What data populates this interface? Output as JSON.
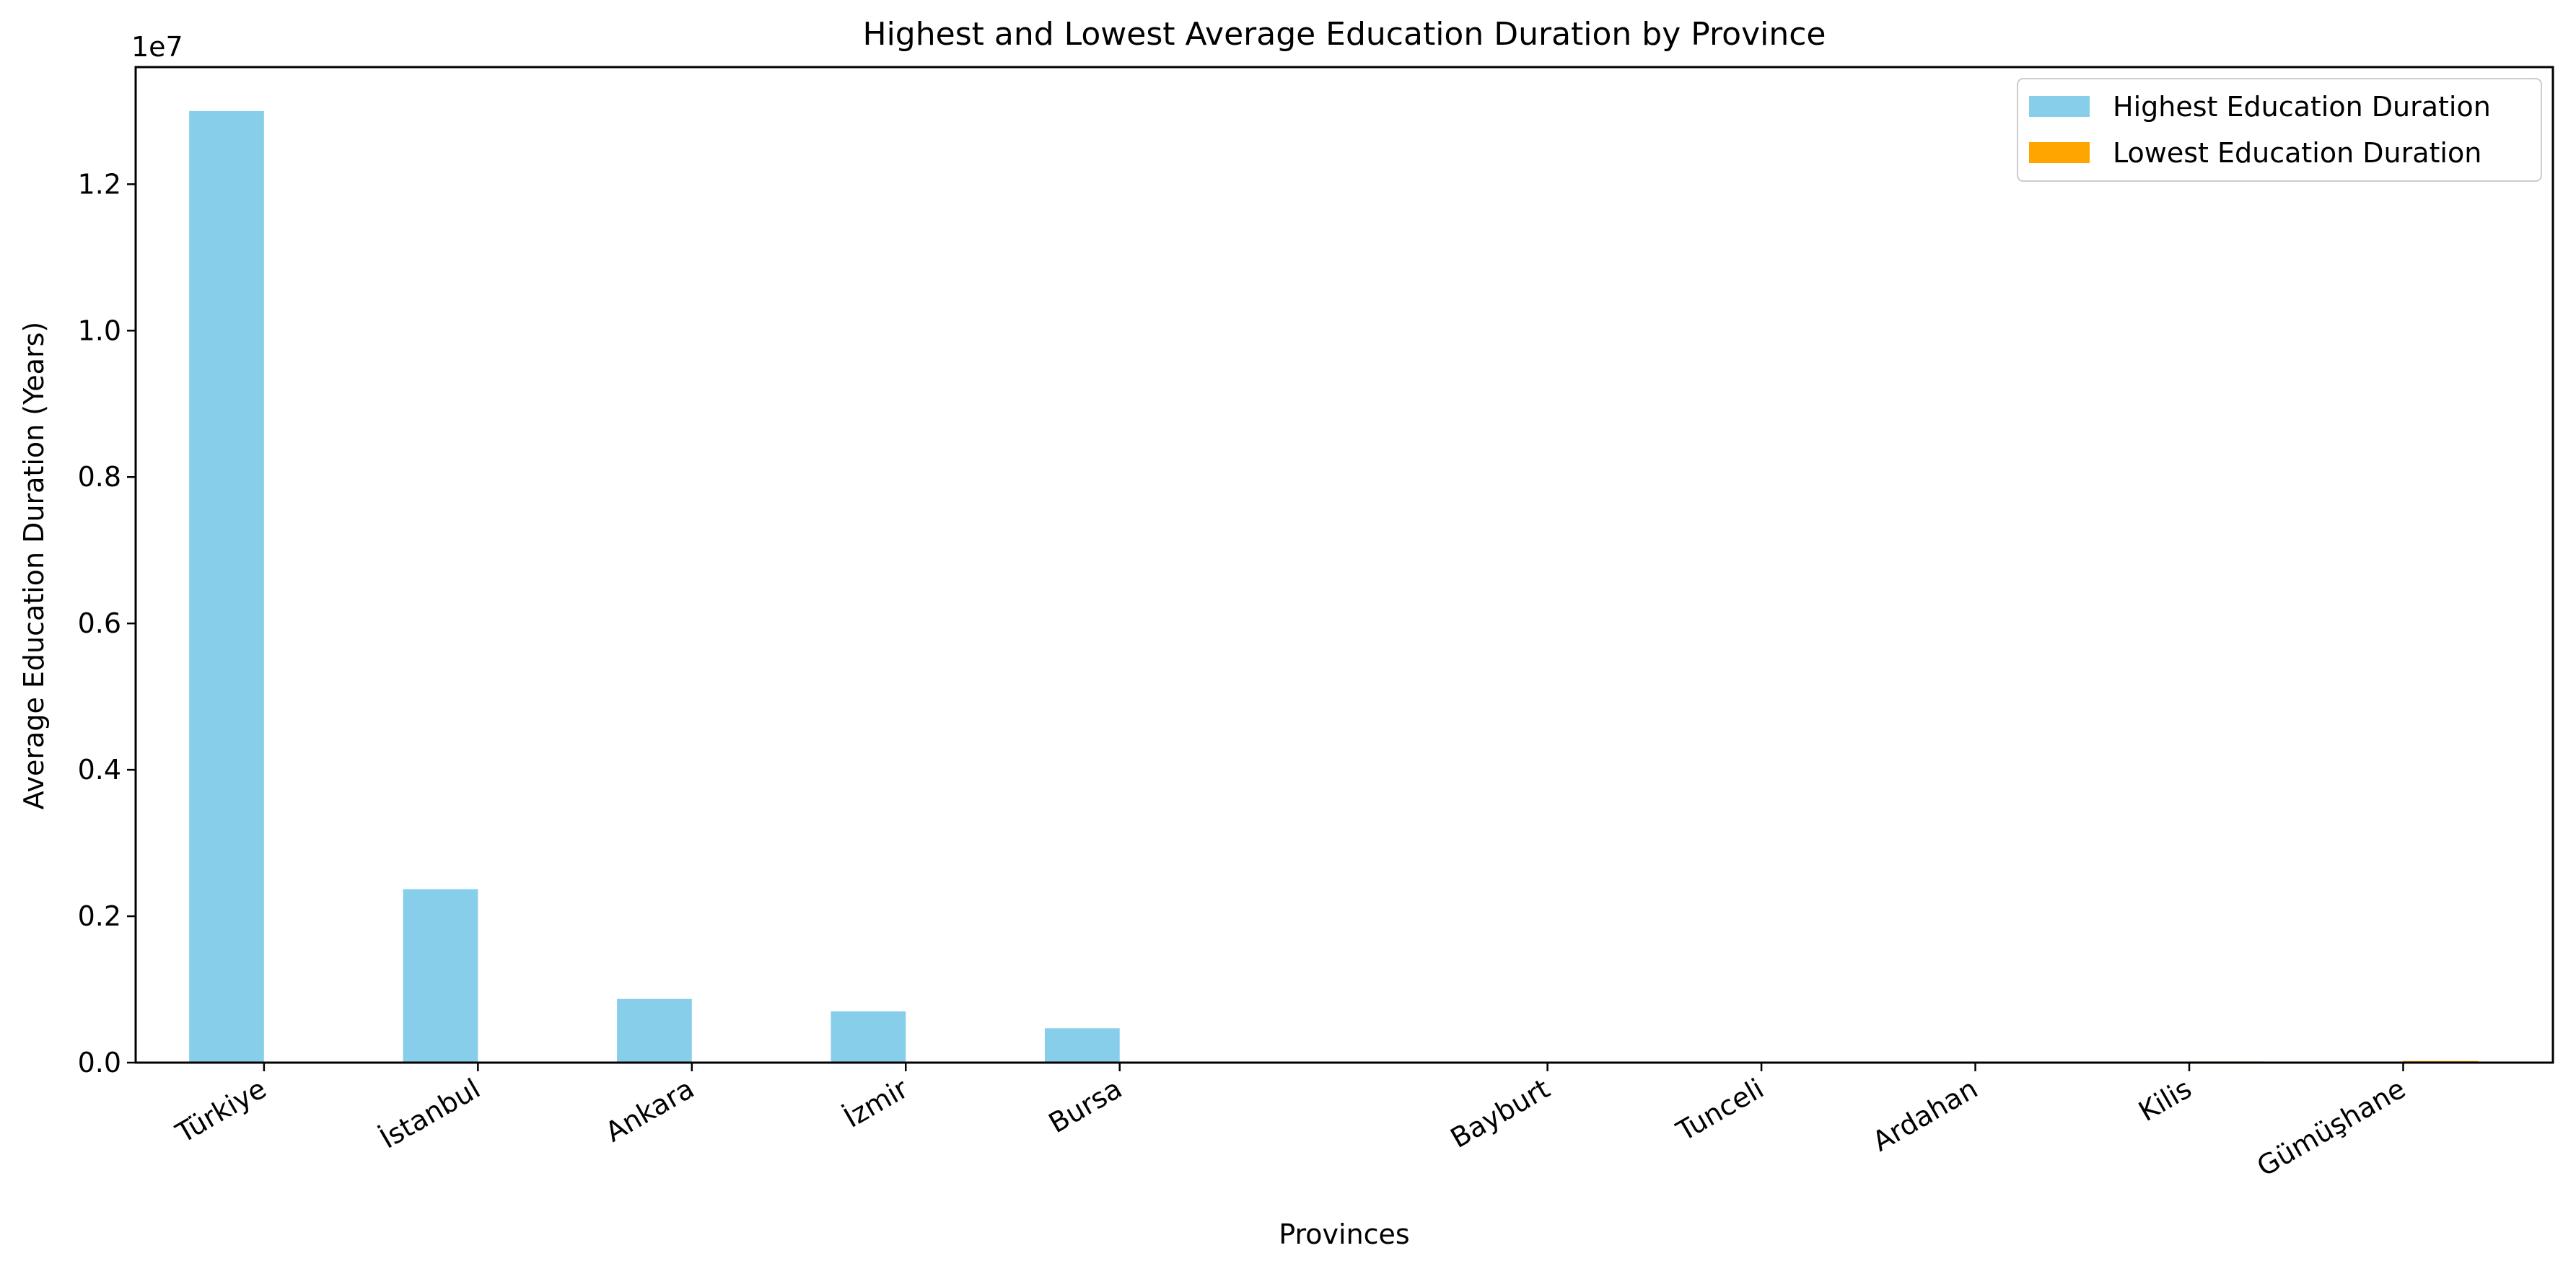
{
  "chart_data": {
    "type": "bar",
    "title": "Highest and Lowest Average Education Duration by Province",
    "xlabel": "Provinces",
    "ylabel": "Average Education Duration (Years)",
    "y_multiplier_label": "1e7",
    "y_multiplier": 10000000,
    "ylim": [
      0,
      1.36
    ],
    "yticks": [
      0.0,
      0.2,
      0.4,
      0.6,
      0.8,
      1.0,
      1.2
    ],
    "ytick_labels": [
      "0.0",
      "0.2",
      "0.4",
      "0.6",
      "0.8",
      "1.0",
      "1.2"
    ],
    "grid": false,
    "legend_position": "top-right",
    "categories": [
      "Türkiye",
      "İstanbul",
      "Ankara",
      "İzmir",
      "Bursa",
      "Bayburt",
      "Tunceli",
      "Ardahan",
      "Kilis",
      "Gümüşhane"
    ],
    "category_x_positions": [
      0,
      1,
      2,
      3,
      4,
      6,
      7,
      8,
      9,
      10
    ],
    "xlim": [
      -0.6,
      10.7
    ],
    "bar_width": 0.35,
    "series": [
      {
        "name": "Highest Education Duration",
        "color": "#87ceeb",
        "values": [
          13000000,
          2370000,
          870000,
          700000,
          470000,
          null,
          null,
          null,
          null,
          null
        ]
      },
      {
        "name": "Lowest Education Duration",
        "color": "#ffa500",
        "values": [
          null,
          null,
          null,
          null,
          null,
          6000,
          7000,
          14000,
          16000,
          22000
        ]
      }
    ]
  }
}
